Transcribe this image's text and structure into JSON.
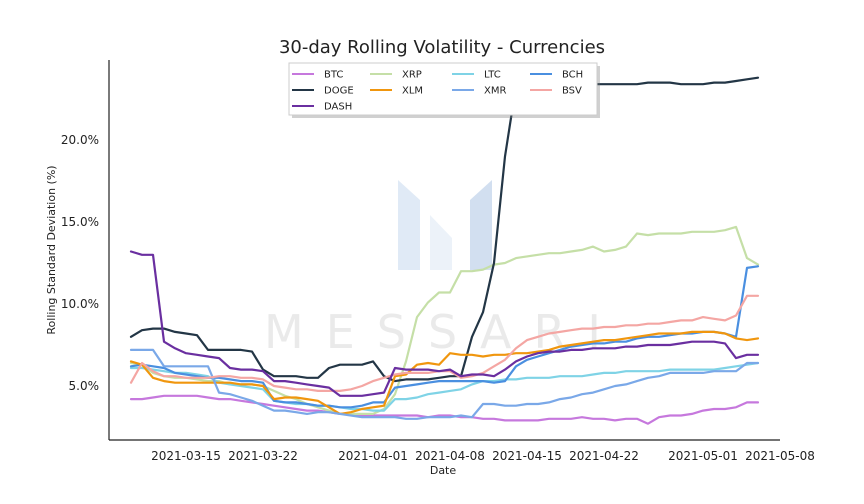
{
  "watermark": {
    "text": "MESSARI"
  },
  "chart_data": {
    "type": "line",
    "title": "30-day Rolling Volatility - Currencies",
    "xlabel": "Date",
    "ylabel": "Rolling Standard Deviation (%)",
    "x_start": "2021-03-10",
    "x": [
      "2021-03-10",
      "2021-03-11",
      "2021-03-12",
      "2021-03-13",
      "2021-03-14",
      "2021-03-15",
      "2021-03-16",
      "2021-03-17",
      "2021-03-18",
      "2021-03-19",
      "2021-03-20",
      "2021-03-21",
      "2021-03-22",
      "2021-03-23",
      "2021-03-24",
      "2021-03-25",
      "2021-03-26",
      "2021-03-27",
      "2021-03-28",
      "2021-03-29",
      "2021-03-30",
      "2021-03-31",
      "2021-04-01",
      "2021-04-02",
      "2021-04-03",
      "2021-04-04",
      "2021-04-05",
      "2021-04-06",
      "2021-04-07",
      "2021-04-08",
      "2021-04-09",
      "2021-04-10",
      "2021-04-11",
      "2021-04-12",
      "2021-04-13",
      "2021-04-14",
      "2021-04-15",
      "2021-04-16",
      "2021-04-17",
      "2021-04-18",
      "2021-04-19",
      "2021-04-20",
      "2021-04-21",
      "2021-04-22",
      "2021-04-23",
      "2021-04-24",
      "2021-04-25",
      "2021-04-26",
      "2021-04-27",
      "2021-04-28",
      "2021-04-29",
      "2021-04-30",
      "2021-05-01",
      "2021-05-02",
      "2021-05-03",
      "2021-05-04",
      "2021-05-05",
      "2021-05-06"
    ],
    "x_ticks": [
      {
        "label": "2021-03-15",
        "value": "2021-03-15"
      },
      {
        "label": "2021-03-22",
        "value": "2021-03-22"
      },
      {
        "label": "2021-04-01",
        "value": "2021-04-01"
      },
      {
        "label": "2021-04-08",
        "value": "2021-04-08"
      },
      {
        "label": "2021-04-15",
        "value": "2021-04-15"
      },
      {
        "label": "2021-04-22",
        "value": "2021-04-22"
      },
      {
        "label": "2021-05-01",
        "value": "2021-05-01"
      },
      {
        "label": "2021-05-08",
        "value": "2021-05-08"
      }
    ],
    "y_ticks": [
      {
        "label": "5.0%",
        "value": 5
      },
      {
        "label": "10.0%",
        "value": 10
      },
      {
        "label": "15.0%",
        "value": 15
      },
      {
        "label": "20.0%",
        "value": 20
      }
    ],
    "xlim": [
      "2021-03-08",
      "2021-05-08"
    ],
    "ylim": [
      2.0,
      24.8
    ],
    "grid": false,
    "legend_position": "top-center",
    "series": [
      {
        "name": "BTC",
        "color": "#c678dd",
        "values": [
          4.2,
          4.2,
          4.3,
          4.4,
          4.4,
          4.4,
          4.4,
          4.3,
          4.2,
          4.2,
          4.1,
          4.0,
          3.9,
          3.8,
          3.7,
          3.6,
          3.5,
          3.5,
          3.4,
          3.3,
          3.3,
          3.2,
          3.2,
          3.2,
          3.2,
          3.2,
          3.2,
          3.1,
          3.2,
          3.2,
          3.1,
          3.1,
          3.0,
          3.0,
          2.9,
          2.9,
          2.9,
          2.9,
          3.0,
          3.0,
          3.0,
          3.1,
          3.0,
          3.0,
          2.9,
          3.0,
          3.0,
          2.7,
          3.1,
          3.2,
          3.2,
          3.3,
          3.5,
          3.6,
          3.6,
          3.7,
          4.0,
          4.0
        ]
      },
      {
        "name": "XRP",
        "color": "#c5dfa7",
        "values": [
          6.4,
          6.3,
          5.8,
          5.6,
          5.5,
          5.5,
          5.4,
          5.3,
          5.3,
          5.1,
          5.1,
          5.1,
          5.0,
          4.7,
          4.4,
          4.2,
          3.9,
          3.7,
          3.5,
          3.3,
          3.3,
          3.3,
          3.3,
          3.6,
          4.5,
          6.5,
          9.2,
          10.1,
          10.7,
          10.7,
          12.0,
          12.0,
          12.1,
          12.4,
          12.5,
          12.8,
          12.9,
          13.0,
          13.1,
          13.1,
          13.2,
          13.3,
          13.5,
          13.2,
          13.3,
          13.5,
          14.3,
          14.2,
          14.3,
          14.3,
          14.3,
          14.4,
          14.4,
          14.4,
          14.5,
          14.7,
          12.8,
          12.4
        ]
      },
      {
        "name": "LTC",
        "color": "#7fd3e6",
        "values": [
          6.1,
          6.1,
          6.0,
          5.9,
          5.8,
          5.8,
          5.7,
          5.6,
          5.2,
          5.1,
          5.0,
          4.9,
          4.8,
          4.1,
          4.0,
          3.9,
          3.9,
          3.8,
          3.8,
          3.7,
          3.6,
          3.6,
          3.5,
          3.5,
          4.2,
          4.2,
          4.3,
          4.5,
          4.6,
          4.7,
          4.8,
          5.1,
          5.3,
          5.3,
          5.4,
          5.4,
          5.5,
          5.5,
          5.5,
          5.6,
          5.6,
          5.6,
          5.7,
          5.8,
          5.8,
          5.9,
          5.9,
          5.9,
          5.9,
          6.0,
          6.0,
          6.0,
          6.0,
          6.0,
          6.1,
          6.2,
          6.3,
          6.4
        ]
      },
      {
        "name": "BCH",
        "color": "#4a8fe0",
        "values": [
          6.2,
          6.3,
          6.2,
          6.1,
          5.8,
          5.7,
          5.6,
          5.5,
          5.5,
          5.4,
          5.3,
          5.3,
          5.2,
          4.1,
          4.0,
          4.0,
          3.9,
          3.8,
          3.8,
          3.7,
          3.7,
          3.8,
          4.0,
          4.0,
          4.9,
          5.0,
          5.1,
          5.2,
          5.3,
          5.3,
          5.3,
          5.3,
          5.3,
          5.2,
          5.3,
          6.2,
          6.6,
          6.8,
          7.0,
          7.2,
          7.4,
          7.5,
          7.6,
          7.6,
          7.7,
          7.7,
          7.9,
          8.0,
          8.0,
          8.1,
          8.2,
          8.2,
          8.3,
          8.3,
          8.2,
          8.0,
          12.2,
          12.3
        ]
      },
      {
        "name": "DOGE",
        "color": "#233646",
        "values": [
          8.0,
          8.4,
          8.5,
          8.5,
          8.3,
          8.2,
          8.1,
          7.2,
          7.2,
          7.2,
          7.2,
          7.1,
          6.0,
          5.6,
          5.6,
          5.6,
          5.5,
          5.5,
          6.1,
          6.3,
          6.3,
          6.3,
          6.5,
          5.6,
          5.3,
          5.4,
          5.4,
          5.4,
          5.5,
          5.6,
          5.6,
          8.0,
          9.5,
          12.5,
          19.0,
          23.3,
          23.4,
          23.3,
          23.2,
          23.3,
          23.4,
          23.3,
          23.4,
          23.4,
          23.4,
          23.4,
          23.4,
          23.5,
          23.5,
          23.5,
          23.4,
          23.4,
          23.4,
          23.5,
          23.5,
          23.6,
          23.7,
          23.8
        ]
      },
      {
        "name": "XLM",
        "color": "#f0960e",
        "values": [
          6.5,
          6.3,
          5.5,
          5.3,
          5.2,
          5.2,
          5.2,
          5.2,
          5.2,
          5.2,
          5.1,
          5.1,
          5.0,
          4.2,
          4.3,
          4.3,
          4.2,
          4.1,
          3.7,
          3.3,
          3.4,
          3.6,
          3.7,
          3.8,
          5.6,
          5.7,
          6.3,
          6.4,
          6.3,
          7.0,
          6.9,
          6.9,
          6.8,
          6.9,
          6.9,
          7.0,
          7.0,
          7.1,
          7.2,
          7.4,
          7.5,
          7.6,
          7.7,
          7.8,
          7.8,
          7.9,
          8.0,
          8.1,
          8.2,
          8.2,
          8.2,
          8.3,
          8.3,
          8.3,
          8.2,
          7.9,
          7.8,
          7.9
        ]
      },
      {
        "name": "XMR",
        "color": "#7aa8e8",
        "values": [
          7.2,
          7.2,
          7.2,
          6.2,
          6.2,
          6.2,
          6.2,
          6.2,
          4.6,
          4.5,
          4.3,
          4.1,
          3.8,
          3.5,
          3.5,
          3.4,
          3.3,
          3.4,
          3.4,
          3.3,
          3.2,
          3.1,
          3.1,
          3.1,
          3.1,
          3.0,
          3.0,
          3.1,
          3.1,
          3.1,
          3.2,
          3.1,
          3.9,
          3.9,
          3.8,
          3.8,
          3.9,
          3.9,
          4.0,
          4.2,
          4.3,
          4.5,
          4.6,
          4.8,
          5.0,
          5.1,
          5.3,
          5.5,
          5.6,
          5.8,
          5.8,
          5.8,
          5.8,
          5.9,
          5.9,
          5.9,
          6.4,
          6.4
        ]
      },
      {
        "name": "BSV",
        "color": "#f4a6a3",
        "values": [
          5.2,
          6.4,
          5.9,
          5.6,
          5.6,
          5.5,
          5.5,
          5.5,
          5.6,
          5.6,
          5.5,
          5.5,
          5.4,
          5.0,
          4.9,
          4.8,
          4.8,
          4.7,
          4.7,
          4.7,
          4.8,
          5.0,
          5.3,
          5.5,
          5.7,
          5.8,
          5.8,
          5.8,
          5.9,
          5.9,
          5.5,
          5.6,
          5.8,
          6.2,
          6.6,
          7.3,
          7.8,
          8.0,
          8.2,
          8.3,
          8.4,
          8.5,
          8.5,
          8.6,
          8.6,
          8.7,
          8.7,
          8.8,
          8.8,
          8.9,
          9.0,
          9.0,
          9.2,
          9.1,
          9.0,
          9.3,
          10.5,
          10.5
        ]
      },
      {
        "name": "DASH",
        "color": "#6a2fa0",
        "values": [
          13.2,
          13.0,
          13.0,
          7.7,
          7.3,
          7.0,
          6.9,
          6.8,
          6.7,
          6.1,
          6.0,
          6.0,
          5.9,
          5.3,
          5.3,
          5.2,
          5.1,
          5.0,
          4.9,
          4.4,
          4.4,
          4.4,
          4.5,
          4.6,
          6.1,
          6.0,
          6.0,
          6.0,
          5.9,
          6.0,
          5.6,
          5.7,
          5.7,
          5.6,
          6.0,
          6.5,
          6.8,
          7.0,
          7.1,
          7.1,
          7.2,
          7.2,
          7.3,
          7.3,
          7.3,
          7.4,
          7.4,
          7.5,
          7.5,
          7.5,
          7.6,
          7.7,
          7.7,
          7.7,
          7.6,
          6.7,
          6.9,
          6.9
        ]
      }
    ]
  }
}
